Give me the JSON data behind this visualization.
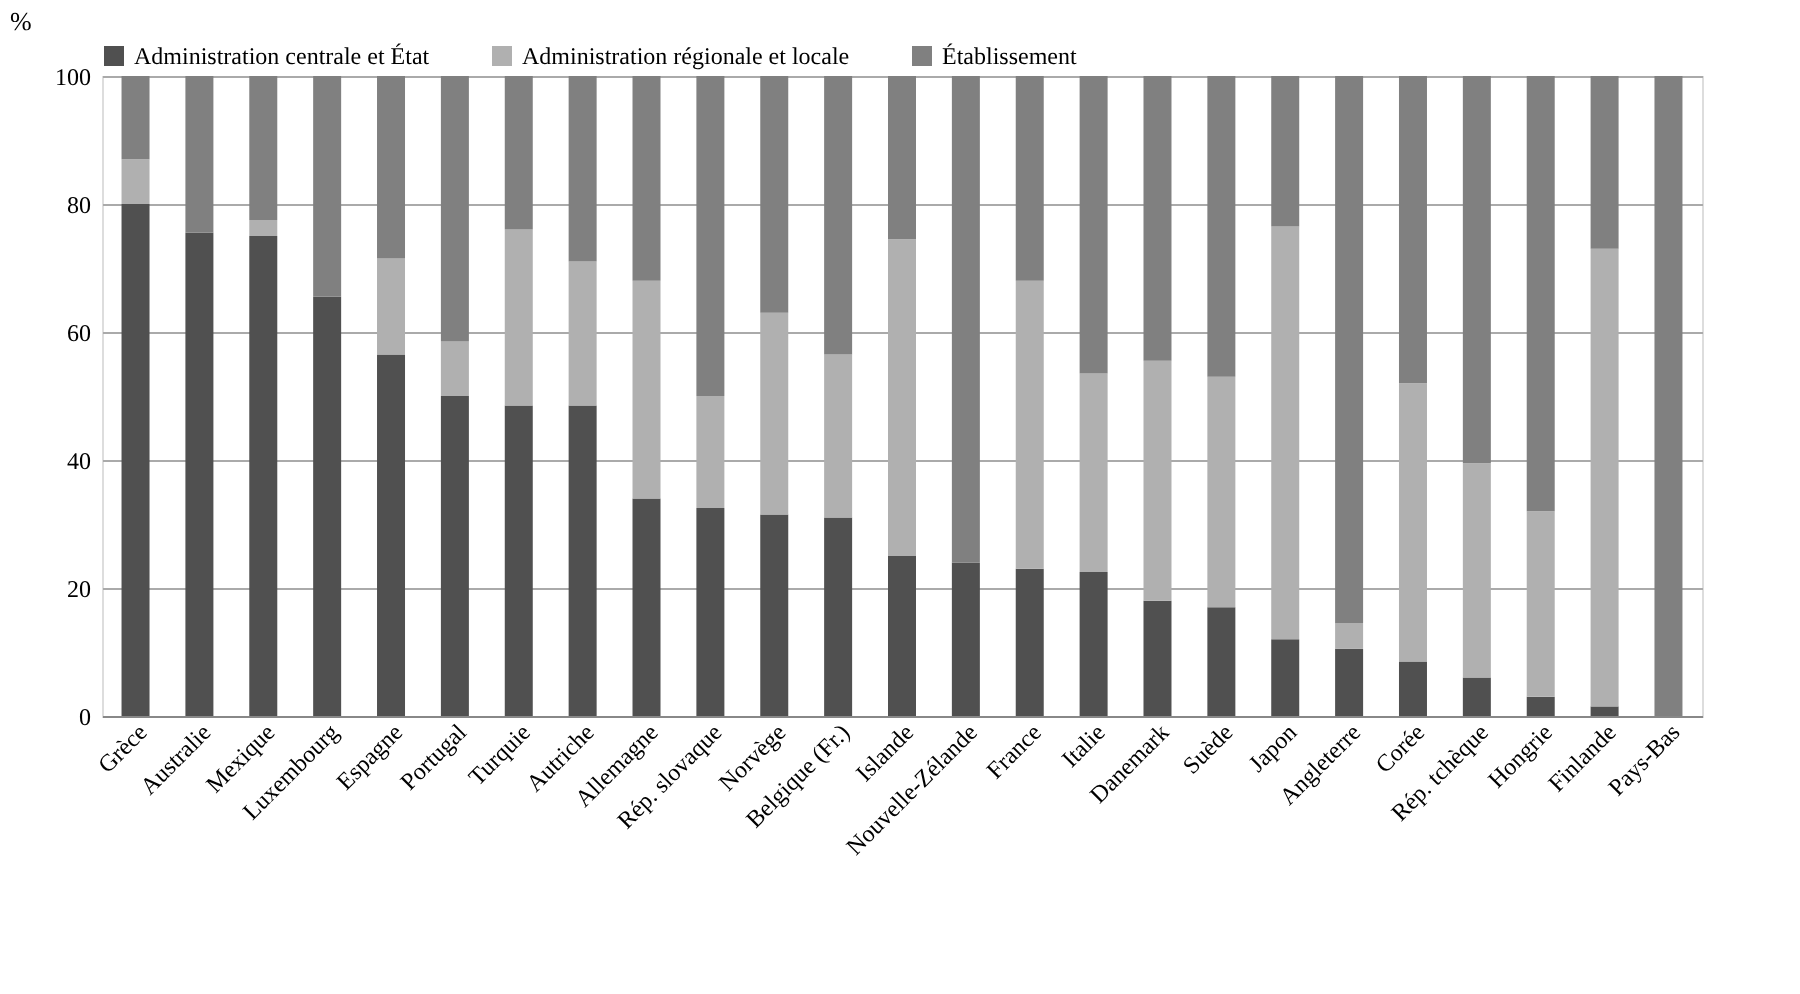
{
  "chart_data": {
    "type": "bar",
    "stacked": true,
    "ylabel": "%",
    "categories": [
      "Grèce",
      "Australie",
      "Mexique",
      "Luxembourg",
      "Espagne",
      "Portugal",
      "Turquie",
      "Autriche",
      "Allemagne",
      "Rép. slovaque",
      "Norvège",
      "Belgique (Fr.)",
      "Islande",
      "Nouvelle-Zélande",
      "France",
      "Italie",
      "Danemark",
      "Suède",
      "Japon",
      "Angleterre",
      "Corée",
      "Rép. tchèque",
      "Hongrie",
      "Finlande",
      "Pays-Bas"
    ],
    "series": [
      {
        "name": "Administration centrale et État",
        "color": "#505050",
        "values": [
          80,
          75.5,
          75,
          65.5,
          56.5,
          50,
          48.5,
          48.5,
          34,
          32.5,
          31.5,
          31,
          25,
          24,
          23,
          22.5,
          18,
          17,
          12,
          10.5,
          8.5,
          6,
          3,
          1.5,
          0
        ]
      },
      {
        "name": "Administration régionale et locale",
        "color": "#b0b0b0",
        "values": [
          7,
          0,
          2.5,
          0,
          15,
          8.5,
          27.5,
          22.5,
          34,
          17.5,
          31.5,
          25.5,
          49.5,
          0,
          45,
          31,
          37.5,
          36,
          64.5,
          4,
          43.5,
          33.5,
          29,
          71.5,
          0
        ]
      },
      {
        "name": "Établissement",
        "color": "#808080",
        "values": [
          13,
          24.5,
          22.5,
          34.5,
          28.5,
          41.5,
          24,
          29,
          32,
          50,
          37,
          43.5,
          25.5,
          76,
          32,
          46.5,
          44.5,
          47,
          23.5,
          85.5,
          48,
          60.5,
          68,
          27,
          100
        ]
      }
    ],
    "ylim": [
      0,
      100
    ],
    "yticks": [
      0,
      20,
      40,
      60,
      80,
      100
    ],
    "grid": "y",
    "legend": "top"
  }
}
